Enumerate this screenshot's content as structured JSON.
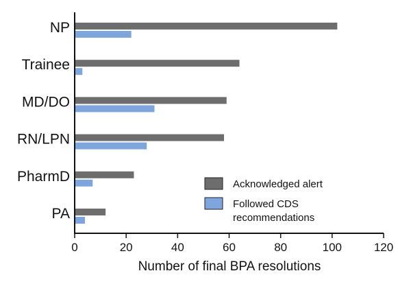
{
  "chart_data": {
    "type": "bar",
    "orientation": "horizontal",
    "categories": [
      "NP",
      "Trainee",
      "MD/DO",
      "RN/LPN",
      "PharmD",
      "PA"
    ],
    "series": [
      {
        "name": "Acknowledged alert",
        "color": "#6d6d6d",
        "values": [
          102,
          64,
          59,
          58,
          23,
          12
        ]
      },
      {
        "name": "Followed CDS recommendations",
        "name_lines": [
          "Followed CDS",
          "recommendations"
        ],
        "color": "#7ea6dc",
        "values": [
          22,
          3,
          31,
          28,
          7,
          4
        ]
      }
    ],
    "xlabel": "Number of final BPA resolutions",
    "xlim": [
      0,
      120
    ],
    "xticks": [
      "0",
      "20",
      "40",
      "60",
      "80",
      "100",
      "120"
    ],
    "grid": false,
    "legend_position": "bottom-right"
  }
}
